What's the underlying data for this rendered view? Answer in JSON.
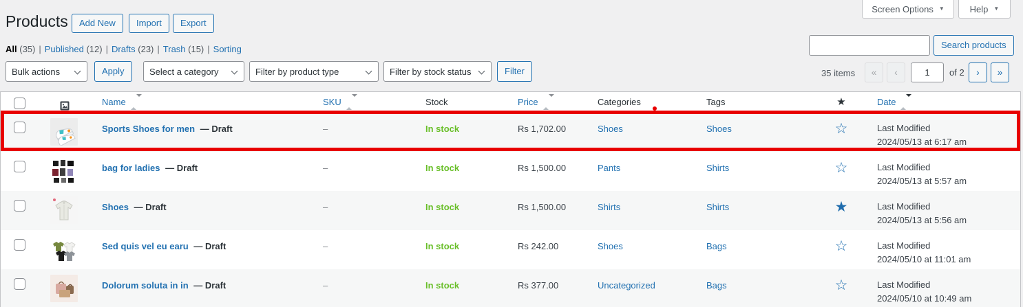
{
  "page": {
    "title": "Products"
  },
  "title_actions": {
    "add_new": "Add New",
    "import": "Import",
    "export": "Export"
  },
  "meta_tabs": {
    "screen_options": "Screen Options",
    "help": "Help",
    "caret": "▼"
  },
  "filter_links": [
    {
      "label": "All",
      "count": "(35)",
      "current": true
    },
    {
      "label": "Published",
      "count": "(12)",
      "current": false
    },
    {
      "label": "Drafts",
      "count": "(23)",
      "current": false
    },
    {
      "label": "Trash",
      "count": "(15)",
      "current": false
    },
    {
      "label": "Sorting",
      "count": "",
      "current": false
    }
  ],
  "toolbar": {
    "bulk_actions": "Bulk actions",
    "apply": "Apply",
    "category_filter": "Select a category",
    "product_type_filter": "Filter by product type",
    "stock_filter": "Filter by stock status",
    "filter_button": "Filter"
  },
  "search": {
    "value": "",
    "button": "Search products"
  },
  "pagination": {
    "items_count": "35 items",
    "first": "«",
    "prev": "‹",
    "current_page": "1",
    "of": "of 2",
    "next": "›",
    "last": "»"
  },
  "table": {
    "headers": {
      "name": "Name",
      "sku": "SKU",
      "stock": "Stock",
      "price": "Price",
      "categories": "Categories",
      "tags": "Tags",
      "featured": "★",
      "date": "Date"
    },
    "sorted_column": "date",
    "sorted_direction": "desc",
    "rows": [
      {
        "name": "Sports Shoes for men",
        "state": "— Draft",
        "sku": "–",
        "stock": "In stock",
        "price": "Rs 1,702.00",
        "categories": "Shoes",
        "tags": "Shoes",
        "featured": false,
        "date_label": "Last Modified",
        "date_value": "2024/05/13 at 6:17 am",
        "thumb": "sneakers-photo",
        "highlighted": true
      },
      {
        "name": "bag for ladies",
        "state": "— Draft",
        "sku": "–",
        "stock": "In stock",
        "price": "Rs 1,500.00",
        "categories": "Pants",
        "tags": "Shirts",
        "featured": false,
        "date_label": "Last Modified",
        "date_value": "2024/05/13 at 5:57 am",
        "thumb": "bags-collage-photo",
        "highlighted": false
      },
      {
        "name": "Shoes",
        "state": "— Draft",
        "sku": "–",
        "stock": "In stock",
        "price": "Rs 1,500.00",
        "categories": "Shirts",
        "tags": "Shirts",
        "featured": true,
        "date_label": "Last Modified",
        "date_value": "2024/05/13 at 5:56 am",
        "thumb": "white-shirt-photo",
        "highlighted": false
      },
      {
        "name": "Sed quis vel eu earu",
        "state": "— Draft",
        "sku": "–",
        "stock": "In stock",
        "price": "Rs 242.00",
        "categories": "Shoes",
        "tags": "Bags",
        "featured": false,
        "date_label": "Last Modified",
        "date_value": "2024/05/10 at 11:01 am",
        "thumb": "tshirts-collage-photo",
        "highlighted": false
      },
      {
        "name": "Dolorum soluta in in",
        "state": "— Draft",
        "sku": "–",
        "stock": "In stock",
        "price": "Rs 377.00",
        "categories": "Uncategorized",
        "tags": "Bags",
        "featured": false,
        "date_label": "Last Modified",
        "date_value": "2024/05/10 at 10:49 am",
        "thumb": "tan-bags-photo",
        "highlighted": false
      }
    ]
  },
  "icons": {
    "star_filled": "★",
    "star_outline": "☆"
  },
  "colors": {
    "accent_blue": "#2271b1",
    "in_stock_green": "#69bf29",
    "annotation_red": "#e80000",
    "page_bg": "#f0f0f1",
    "stripe_bg": "#f6f7f7"
  }
}
